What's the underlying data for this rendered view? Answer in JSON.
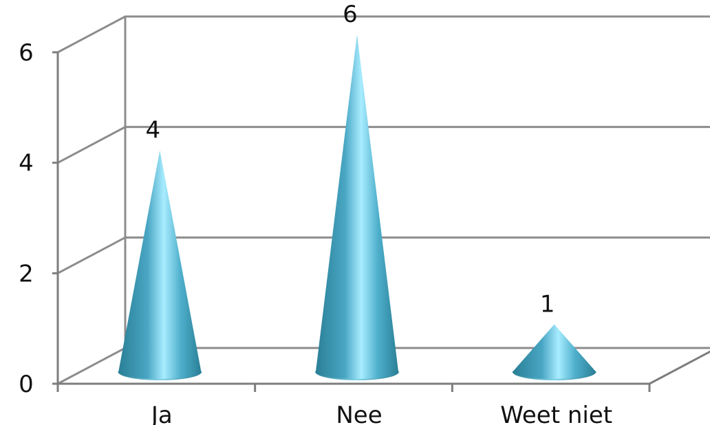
{
  "chart_data": {
    "type": "bar",
    "bar_shape": "cone",
    "categories": [
      "Ja",
      "Nee",
      "Weet niet"
    ],
    "values": [
      4,
      6,
      1
    ],
    "data_labels": [
      "4",
      "6",
      "1"
    ],
    "y_ticks": [
      "0",
      "2",
      "4",
      "6"
    ],
    "ylim": [
      0,
      6
    ],
    "grid": true,
    "legend": "none",
    "colors": {
      "cone_dark": "#2a7f96",
      "cone_mid": "#49a6c3",
      "cone_light": "#a8ecff",
      "grid": "#8c8c8c",
      "axis": "#7d7d7d"
    }
  }
}
